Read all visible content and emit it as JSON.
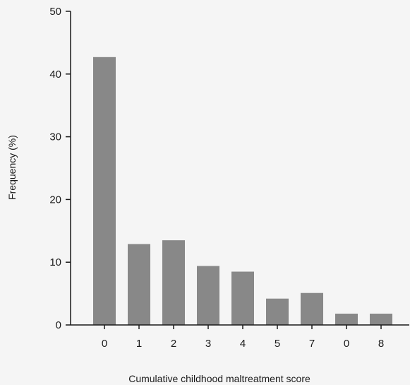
{
  "chart_data": {
    "type": "bar",
    "categories": [
      "0",
      "1",
      "2",
      "3",
      "4",
      "5",
      "7",
      "0",
      "8"
    ],
    "values": [
      42.7,
      12.9,
      13.5,
      9.4,
      8.5,
      4.2,
      5.1,
      1.8,
      1.8
    ],
    "title": "",
    "xlabel": "Cumulative childhood maltreatment score",
    "ylabel": "Frequency (%)",
    "ylim": [
      0,
      50
    ],
    "yticks": [
      "0",
      "10",
      "20",
      "30",
      "40",
      "50"
    ],
    "grid": false,
    "bar_color": "#888888",
    "axis_color": "#1a1a1a"
  }
}
